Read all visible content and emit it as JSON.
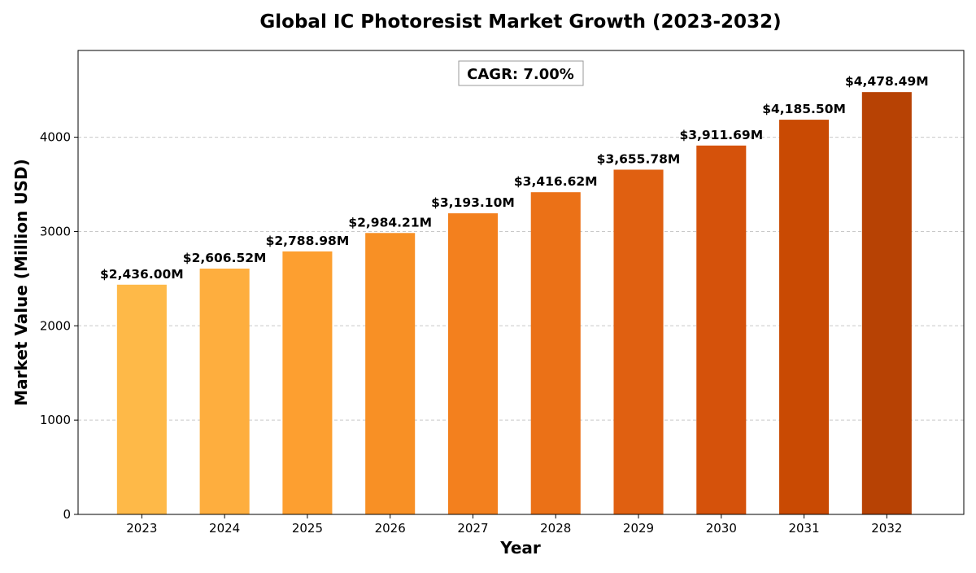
{
  "chart_data": {
    "type": "bar",
    "title": "Global IC Photoresist Market Growth (2023-2032)",
    "xlabel": "Year",
    "ylabel": "Market Value (Million USD)",
    "categories": [
      "2023",
      "2024",
      "2025",
      "2026",
      "2027",
      "2028",
      "2029",
      "2030",
      "2031",
      "2032"
    ],
    "values": [
      2436.0,
      2606.52,
      2788.98,
      2984.21,
      3193.1,
      3416.62,
      3655.78,
      3911.69,
      4185.5,
      4478.49
    ],
    "value_labels": [
      "$2,436.00M",
      "$2,606.52M",
      "$2,788.98M",
      "$2,984.21M",
      "$3,193.10M",
      "$3,416.62M",
      "$3,655.78M",
      "$3,911.69M",
      "$4,185.50M",
      "$4,478.49M"
    ],
    "ylim": [
      0,
      4920
    ],
    "yticks": [
      0,
      1000,
      2000,
      3000,
      4000
    ],
    "ytick_labels": [
      "0",
      "1000",
      "2000",
      "3000",
      "4000"
    ],
    "grid": true,
    "annotation": "CAGR: 7.00%",
    "colors": [
      "#feb948",
      "#feae3e",
      "#fd9f30",
      "#f89025",
      "#f3801e",
      "#eb7117",
      "#e06011",
      "#d5520b",
      "#c94a03",
      "#b74204"
    ]
  }
}
